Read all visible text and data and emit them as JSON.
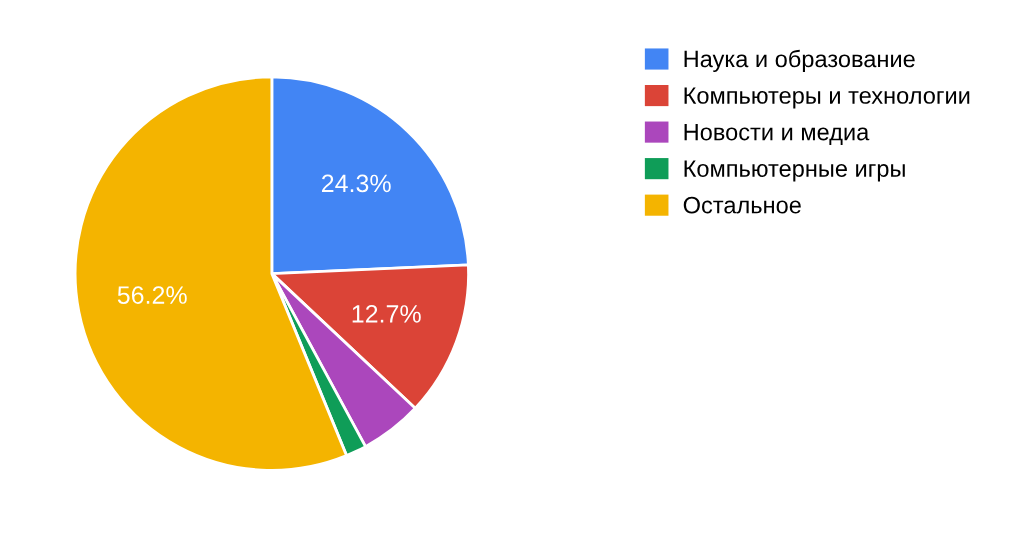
{
  "chart_data": {
    "type": "pie",
    "categories": [
      "Наука и образование",
      "Компьютеры и технологии",
      "Новости и медиа",
      "Компьютерные игры",
      "Остальное"
    ],
    "values": [
      24.3,
      12.7,
      5.1,
      1.7,
      56.2
    ],
    "colors": [
      "#4285f4",
      "#db4437",
      "#ab47bc",
      "#0f9d58",
      "#f4b400"
    ],
    "value_labels": [
      "24.3%",
      "12.7%",
      null,
      null,
      "56.2%"
    ],
    "legend": "right"
  }
}
